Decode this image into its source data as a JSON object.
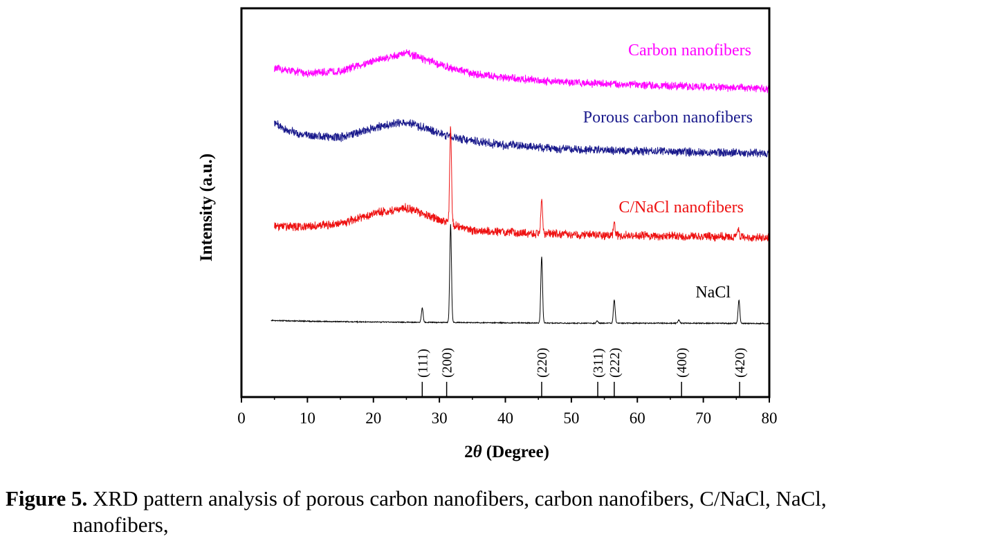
{
  "chart_data": {
    "type": "line",
    "xlabel_prefix": "2",
    "xlabel_symbol": "θ",
    "xlabel_suffix": " (Degree)",
    "ylabel": "Intensity (a.u.)",
    "xlim": [
      0,
      80
    ],
    "ylim": [
      0,
      100
    ],
    "x_ticks": [
      0,
      10,
      20,
      30,
      40,
      50,
      60,
      70,
      80
    ],
    "x_tick_labels": [
      "0",
      "10",
      "20",
      "30",
      "40",
      "50",
      "60",
      "70",
      "80"
    ],
    "y_ticks_labeled": false,
    "grid": false,
    "legend": "inline labels",
    "series": [
      {
        "name": "Carbon nanofibers",
        "color": "#ff00ff",
        "x_start": 5,
        "x_end": 80,
        "baseline": [
          [
            5,
            84.5
          ],
          [
            10,
            83.3
          ],
          [
            15,
            83.8
          ],
          [
            20,
            86.5
          ],
          [
            25,
            88.5
          ],
          [
            30,
            85.5
          ],
          [
            35,
            83.2
          ],
          [
            40,
            82.1
          ],
          [
            45,
            81.5
          ],
          [
            50,
            80.9
          ],
          [
            60,
            80.3
          ],
          [
            70,
            79.8
          ],
          [
            80,
            79.3
          ]
        ],
        "noise": 1.2,
        "peaks": []
      },
      {
        "name": "Porous carbon nanofibers",
        "color": "#1a1a8c",
        "x_start": 5,
        "x_end": 80,
        "baseline": [
          [
            5,
            70.5
          ],
          [
            7,
            68.5
          ],
          [
            10,
            67.3
          ],
          [
            15,
            66.8
          ],
          [
            20,
            69.2
          ],
          [
            25,
            70.8
          ],
          [
            30,
            67.8
          ],
          [
            35,
            65.8
          ],
          [
            40,
            64.8
          ],
          [
            45,
            64.3
          ],
          [
            50,
            63.7
          ],
          [
            60,
            63.3
          ],
          [
            70,
            63.0
          ],
          [
            80,
            62.7
          ]
        ],
        "noise": 1.3,
        "peaks": []
      },
      {
        "name": "C/NaCl nanofibers",
        "color": "#ee1111",
        "x_start": 5,
        "x_end": 80,
        "baseline": [
          [
            5,
            43.8
          ],
          [
            10,
            43.8
          ],
          [
            15,
            44.6
          ],
          [
            20,
            47.2
          ],
          [
            25,
            48.7
          ],
          [
            29,
            46.2
          ],
          [
            33,
            43.8
          ],
          [
            35,
            42.8
          ],
          [
            40,
            42.4
          ],
          [
            45,
            42.1
          ],
          [
            50,
            41.8
          ],
          [
            60,
            41.5
          ],
          [
            70,
            41.3
          ],
          [
            80,
            41.0
          ]
        ],
        "noise": 1.3,
        "peaks": [
          [
            31.7,
            25.5
          ],
          [
            45.5,
            9.0
          ],
          [
            56.5,
            3.0
          ],
          [
            75.3,
            2.2
          ]
        ]
      },
      {
        "name": "NaCl",
        "color": "#000000",
        "x_start": 4.5,
        "x_end": 80,
        "baseline": [
          [
            4.5,
            19.7
          ],
          [
            10,
            19.5
          ],
          [
            20,
            19.3
          ],
          [
            30,
            19.2
          ],
          [
            40,
            19.1
          ],
          [
            50,
            19.0
          ],
          [
            60,
            19.0
          ],
          [
            70,
            19.0
          ],
          [
            80,
            18.9
          ]
        ],
        "noise": 0.15,
        "peaks": [
          [
            27.4,
            3.7
          ],
          [
            31.7,
            25.2
          ],
          [
            45.5,
            17.1
          ],
          [
            53.9,
            0.6
          ],
          [
            56.5,
            6.0
          ],
          [
            66.3,
            0.8
          ],
          [
            75.4,
            6.0
          ]
        ]
      }
    ],
    "annotations": [
      {
        "label": "(111)",
        "x": 27.4
      },
      {
        "label": "(200)",
        "x": 31.1
      },
      {
        "label": "(220)",
        "x": 45.5
      },
      {
        "label": "(311)",
        "x": 54.0
      },
      {
        "label": "(222)",
        "x": 56.5
      },
      {
        "label": "(400)",
        "x": 66.7
      },
      {
        "label": "(420)",
        "x": 75.5
      }
    ]
  },
  "caption": {
    "figure_label": "Figure 5.",
    "text_line1": " XRD pattern analysis of porous carbon nanofibers, carbon nanofibers, C/NaCl, NaCl,",
    "text_line2": "nanofibers,"
  }
}
